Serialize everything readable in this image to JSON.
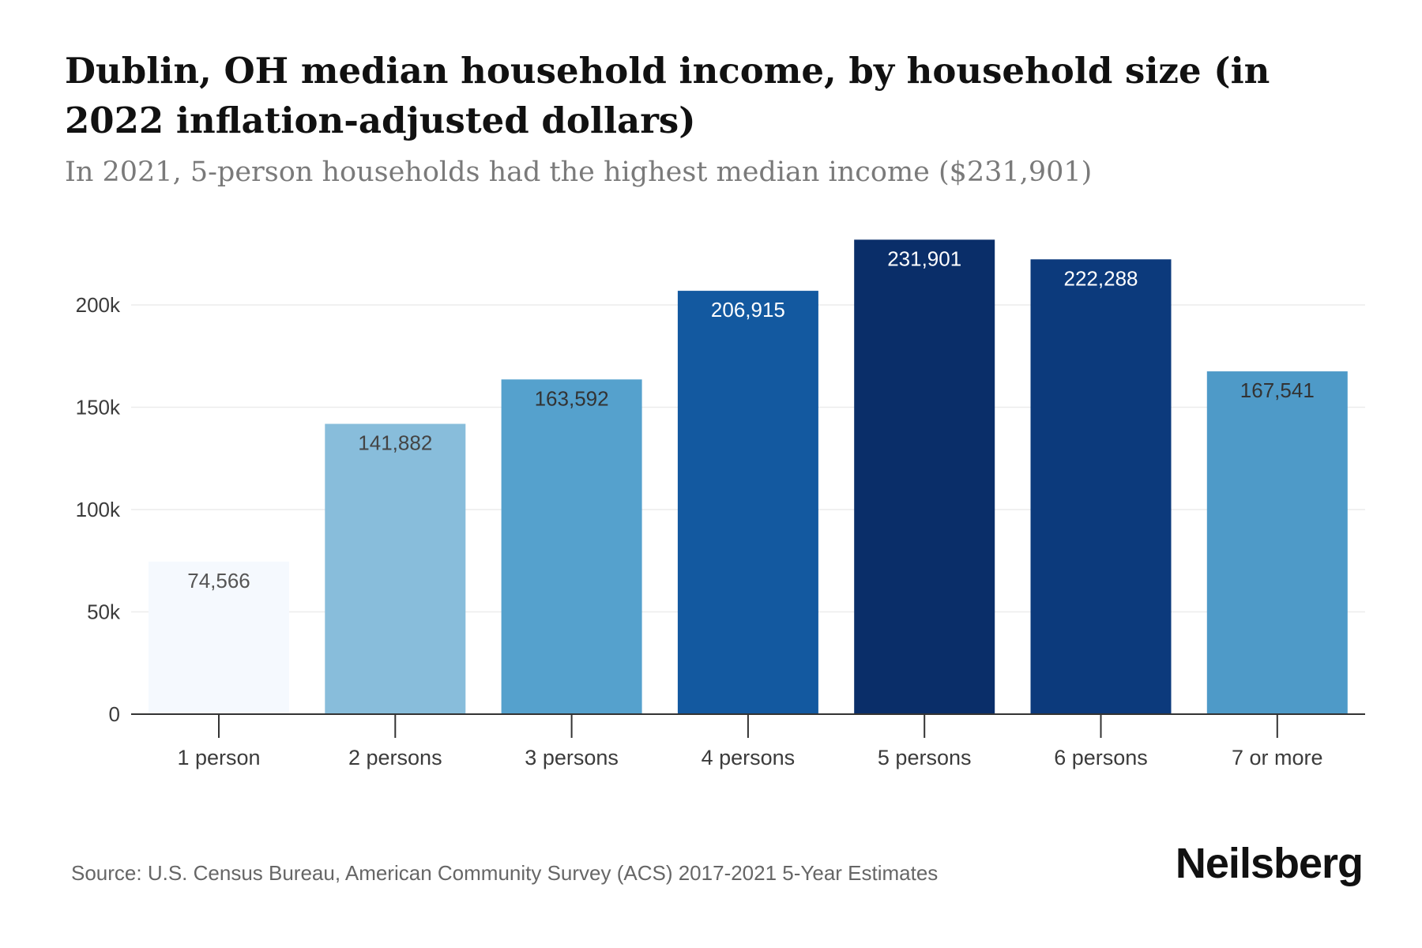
{
  "chart_data": {
    "type": "bar",
    "title": "Dublin, OH median household income, by household size (in 2022 inflation-adjusted dollars)",
    "subtitle": "In 2021, 5-person households had the highest median income ($231,901)",
    "categories": [
      "1 person",
      "2 persons",
      "3 persons",
      "4 persons",
      "5 persons",
      "6 persons",
      "7 or more"
    ],
    "values": [
      74566,
      141882,
      163592,
      206915,
      231901,
      222288,
      167541
    ],
    "value_labels": [
      "74,566",
      "141,882",
      "163,592",
      "206,915",
      "231,901",
      "222,288",
      "167,541"
    ],
    "bar_colors": [
      "#f5f9fe",
      "#88bddb",
      "#55a1cd",
      "#1359a0",
      "#0a2e69",
      "#0c3a7c",
      "#4e9ac8"
    ],
    "label_colors": [
      "#555555",
      "#444444",
      "#333333",
      "#ffffff",
      "#ffffff",
      "#ffffff",
      "#333333"
    ],
    "yticks": [
      0,
      50000,
      100000,
      150000,
      200000
    ],
    "ytick_labels": [
      "0",
      "50k",
      "100k",
      "150k",
      "200k"
    ],
    "ylim": [
      0,
      240000
    ],
    "xlabel": "",
    "ylabel": "",
    "grid": true,
    "legend": "none"
  },
  "footer": {
    "source": "Source: U.S. Census Bureau, American Community Survey (ACS) 2017-2021 5-Year Estimates",
    "brand": "Neilsberg"
  }
}
